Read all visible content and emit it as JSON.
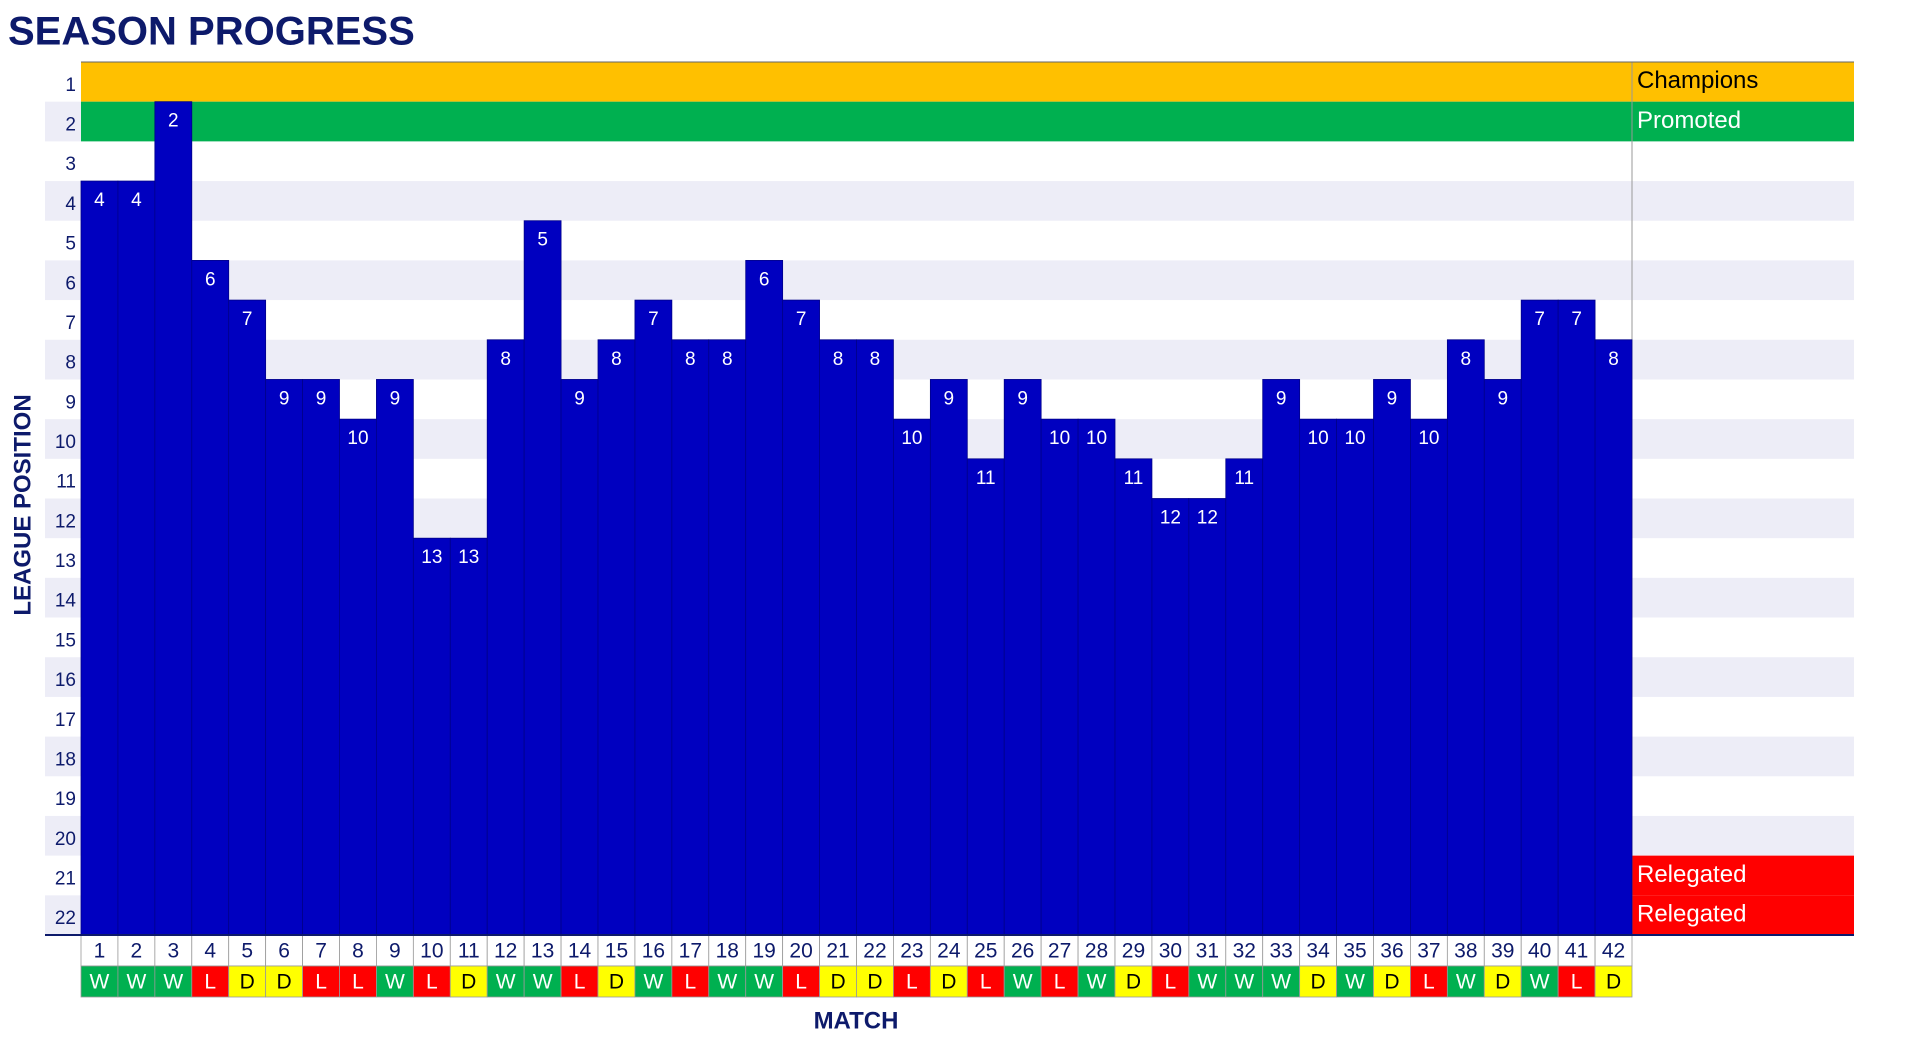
{
  "chart_data": {
    "type": "step-bar",
    "title": "SEASON PROGRESS",
    "x_label": "MATCH",
    "y_label": "LEAGUE POSITION",
    "categories": [
      1,
      2,
      3,
      4,
      5,
      6,
      7,
      8,
      9,
      10,
      11,
      12,
      13,
      14,
      15,
      16,
      17,
      18,
      19,
      20,
      21,
      22,
      23,
      24,
      25,
      26,
      27,
      28,
      29,
      30,
      31,
      32,
      33,
      34,
      35,
      36,
      37,
      38,
      39,
      40,
      41,
      42
    ],
    "values": [
      4,
      4,
      2,
      6,
      7,
      9,
      9,
      10,
      9,
      13,
      13,
      8,
      5,
      9,
      8,
      7,
      8,
      8,
      6,
      7,
      8,
      8,
      10,
      9,
      11,
      9,
      10,
      10,
      11,
      12,
      12,
      11,
      9,
      10,
      10,
      9,
      10,
      8,
      9,
      7,
      7,
      8
    ],
    "results": [
      "W",
      "W",
      "W",
      "L",
      "D",
      "D",
      "L",
      "L",
      "W",
      "L",
      "D",
      "W",
      "W",
      "L",
      "D",
      "W",
      "L",
      "W",
      "W",
      "L",
      "D",
      "D",
      "L",
      "D",
      "L",
      "W",
      "L",
      "W",
      "D",
      "L",
      "W",
      "W",
      "W",
      "D",
      "W",
      "D",
      "L",
      "W",
      "D",
      "W",
      "L",
      "D"
    ],
    "result_colors": {
      "W": "#00B050",
      "L": "#FF0000",
      "D": "#FFFF00"
    },
    "color": "#0000C0",
    "ylim": [
      1,
      22
    ],
    "y_inverted": true,
    "yticks": [
      1,
      2,
      3,
      4,
      5,
      6,
      7,
      8,
      9,
      10,
      11,
      12,
      13,
      14,
      15,
      16,
      17,
      18,
      19,
      20,
      21,
      22
    ],
    "zones": [
      {
        "position": 1,
        "label": "Champions",
        "color": "#FFC000"
      },
      {
        "position": 2,
        "label": "Promoted",
        "color": "#00B050"
      },
      {
        "position": 21,
        "label": "Relegated",
        "color": "#FF0000"
      },
      {
        "position": 22,
        "label": "Relegated",
        "color": "#FF0000"
      }
    ]
  }
}
